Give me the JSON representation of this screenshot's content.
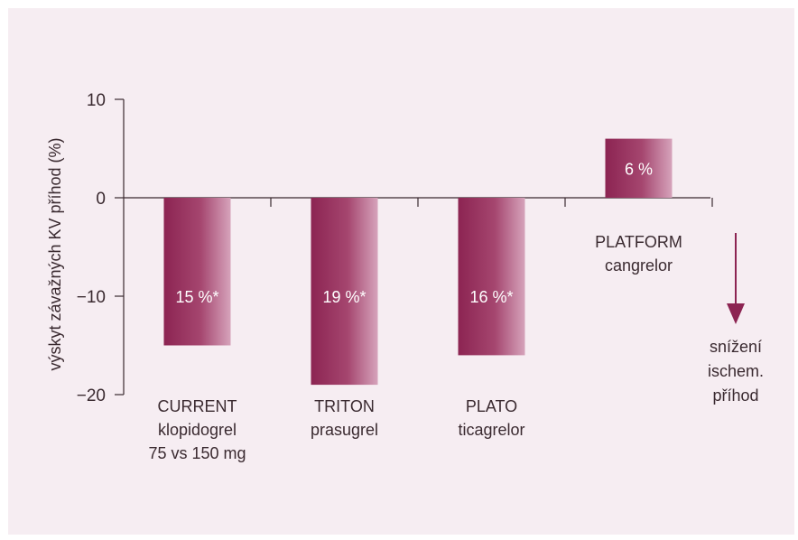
{
  "chart_data": {
    "type": "bar",
    "ylabel": "výskyt závažných KV příhod (%)",
    "ylim": [
      -20,
      10
    ],
    "yticks": [
      {
        "value": 10,
        "label": "10"
      },
      {
        "value": 0,
        "label": "0"
      },
      {
        "value": -10,
        "label": "−10"
      },
      {
        "value": -20,
        "label": "−20"
      }
    ],
    "grid": false,
    "bars": [
      {
        "value": -15,
        "label": "15 %*",
        "name_lines": [
          "CURRENT",
          "klopidogrel",
          "75 vs 150 mg"
        ]
      },
      {
        "value": -19,
        "label": "19 %*",
        "name_lines": [
          "TRITON",
          "prasugrel"
        ]
      },
      {
        "value": -16,
        "label": "16 %*",
        "name_lines": [
          "PLATO",
          "ticagrelor"
        ]
      },
      {
        "value": 6,
        "label": "6 %",
        "name_lines": [
          "PLATFORM",
          "cangrelor"
        ]
      }
    ],
    "annotation": {
      "lines": [
        "snížení",
        "ischem.",
        "příhod"
      ],
      "arrow": "down"
    },
    "colors": {
      "bar_dark": "#8c2452",
      "bar_light": "#d6a3bb",
      "axis": "#3a2a30",
      "arrow": "#8c2452",
      "background": "#f6edf2"
    }
  }
}
